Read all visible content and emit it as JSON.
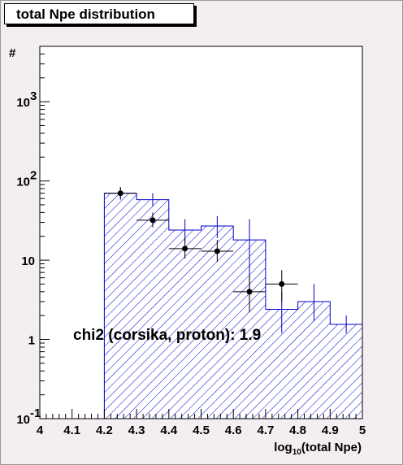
{
  "title": "total Npe distribution",
  "chart_data": {
    "type": "histogram",
    "title": "total Npe distribution",
    "xlabel_prefix": "log",
    "xlabel_sub": "10",
    "xlabel_suffix": "(total Npe)",
    "ylabel": "#",
    "y_scale": "log",
    "xlim": [
      4.0,
      5.0
    ],
    "ylim": [
      0.1,
      5000
    ],
    "x_ticks": [
      "4",
      "4.1",
      "4.2",
      "4.3",
      "4.4",
      "4.5",
      "4.6",
      "4.7",
      "4.8",
      "4.9",
      "5"
    ],
    "y_ticks": [
      {
        "value": 0.1,
        "base": "10",
        "exp": "-1"
      },
      {
        "value": 1,
        "base": "1",
        "exp": ""
      },
      {
        "value": 10,
        "base": "10",
        "exp": ""
      },
      {
        "value": 100,
        "base": "10",
        "exp": "2"
      },
      {
        "value": 1000,
        "base": "10",
        "exp": "3"
      }
    ],
    "simulation": {
      "color": "#0000cc",
      "bins": [
        {
          "x0": 4.2,
          "x1": 4.3,
          "y": 70,
          "err_lo": 58,
          "err_hi": 84
        },
        {
          "x0": 4.3,
          "x1": 4.4,
          "y": 58,
          "err_lo": 48,
          "err_hi": 70
        },
        {
          "x0": 4.4,
          "x1": 4.5,
          "y": 24,
          "err_lo": 17,
          "err_hi": 33
        },
        {
          "x0": 4.5,
          "x1": 4.6,
          "y": 27,
          "err_lo": 19,
          "err_hi": 36
        },
        {
          "x0": 4.6,
          "x1": 4.7,
          "y": 18,
          "err_lo": 4,
          "err_hi": 33
        },
        {
          "x0": 4.7,
          "x1": 4.8,
          "y": 2.4,
          "err_lo": 1.2,
          "err_hi": 4
        },
        {
          "x0": 4.8,
          "x1": 4.9,
          "y": 3.0,
          "err_lo": 1.7,
          "err_hi": 5
        },
        {
          "x0": 4.9,
          "x1": 5.0,
          "y": 1.55,
          "err_lo": 1.2,
          "err_hi": 2
        }
      ]
    },
    "data_points": {
      "color": "#000000",
      "points": [
        {
          "x": 4.25,
          "y": 70,
          "err_lo": 60,
          "err_hi": 82,
          "xerr": 0.05
        },
        {
          "x": 4.35,
          "y": 32,
          "err_lo": 26,
          "err_hi": 40,
          "xerr": 0.05
        },
        {
          "x": 4.45,
          "y": 14,
          "err_lo": 10.5,
          "err_hi": 19,
          "xerr": 0.05
        },
        {
          "x": 4.55,
          "y": 13,
          "err_lo": 9.5,
          "err_hi": 18,
          "xerr": 0.05
        },
        {
          "x": 4.65,
          "y": 4,
          "err_lo": 2.2,
          "err_hi": 6.5,
          "xerr": 0.05
        },
        {
          "x": 4.75,
          "y": 5,
          "err_lo": 3.0,
          "err_hi": 7.5,
          "xerr": 0.05
        }
      ]
    },
    "annotation": "chi2 (corsika, proton): 1.9"
  }
}
